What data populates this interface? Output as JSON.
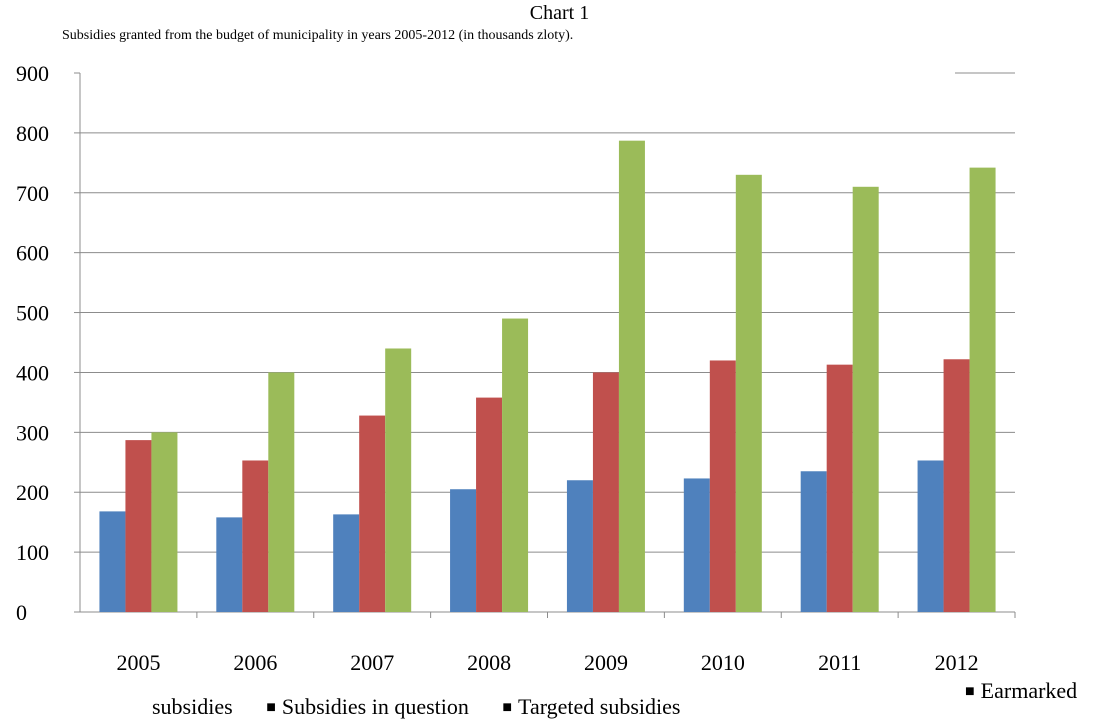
{
  "chart_data": {
    "type": "bar",
    "heading": "Chart 1",
    "title": "Subsidies granted from the budget of municipality in years 2005-2012 (in thousands zloty).",
    "categories": [
      "2005",
      "2006",
      "2007",
      "2008",
      "2009",
      "2010",
      "2011",
      "2012"
    ],
    "series": [
      {
        "name": "Earmarked subsidies",
        "color": "#4f81bd",
        "values": [
          168,
          158,
          163,
          205,
          220,
          223,
          235,
          253
        ]
      },
      {
        "name": "Subsidies in question",
        "color": "#c0504d",
        "values": [
          287,
          253,
          328,
          358,
          400,
          420,
          413,
          422
        ]
      },
      {
        "name": "Targeted subsidies",
        "color": "#9bbb59",
        "values": [
          300,
          400,
          440,
          490,
          787,
          730,
          710,
          742
        ]
      }
    ],
    "yticks": [
      0,
      100,
      200,
      300,
      400,
      500,
      600,
      700,
      800,
      900
    ],
    "ylim": [
      0,
      900
    ],
    "grid": true,
    "legend_position": "bottom"
  }
}
